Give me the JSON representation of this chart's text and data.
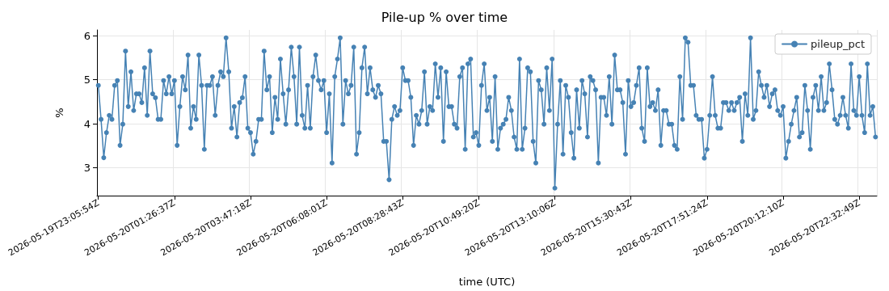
{
  "chart_data": {
    "type": "line",
    "title": "Pile-up % over time",
    "xlabel": "time (UTC)",
    "ylabel": "%",
    "categories": [
      "2026-05-19T23:05:54Z",
      null,
      null,
      null,
      null,
      null,
      null,
      null,
      null,
      null,
      null,
      null,
      null,
      null,
      null,
      null,
      null,
      null,
      null,
      null,
      null,
      null,
      null,
      null,
      null,
      null,
      null,
      null,
      "2026-05-20T01:26:37Z",
      null,
      null,
      null,
      null,
      null,
      null,
      null,
      null,
      null,
      null,
      null,
      null,
      null,
      null,
      null,
      null,
      null,
      null,
      null,
      null,
      null,
      null,
      null,
      null,
      null,
      null,
      null,
      "2026-05-20T03:47:18Z",
      null,
      null,
      null,
      null,
      null,
      null,
      null,
      null,
      null,
      null,
      null,
      null,
      null,
      null,
      null,
      null,
      null,
      null,
      null,
      null,
      null,
      null,
      null,
      null,
      null,
      null,
      null,
      "2026-05-20T06:08:01Z",
      null,
      null,
      null,
      null,
      null,
      null,
      null,
      null,
      null,
      null,
      null,
      null,
      null,
      null,
      null,
      null,
      null,
      null,
      null,
      null,
      null,
      null,
      null,
      null,
      null,
      null,
      null,
      "2026-05-20T08:28:43Z",
      null,
      null,
      null,
      null,
      null,
      null,
      null,
      null,
      null,
      null,
      null,
      null,
      null,
      null,
      null,
      null,
      null,
      null,
      null,
      null,
      null,
      null,
      null,
      null,
      null,
      null,
      null,
      "2026-05-20T10:49:20Z",
      null,
      null,
      null,
      null,
      null,
      null,
      null,
      null,
      null,
      null,
      null,
      null,
      null,
      null,
      null,
      null,
      null,
      null,
      null,
      null,
      null,
      null,
      null,
      null,
      null,
      null,
      null,
      "2026-05-20T13:10:06Z",
      null,
      null,
      null,
      null,
      null,
      null,
      null,
      null,
      null,
      null,
      null,
      null,
      null,
      null,
      null,
      null,
      null,
      null,
      null,
      null,
      null,
      null,
      null,
      null,
      null,
      null,
      null,
      "2026-05-20T15:30:43Z",
      null,
      null,
      null,
      null,
      null,
      null,
      null,
      null,
      null,
      null,
      null,
      null,
      null,
      null,
      null,
      null,
      null,
      null,
      null,
      null,
      null,
      null,
      null,
      null,
      null,
      null,
      null,
      "2026-05-20T17:51:24Z",
      null,
      null,
      null,
      null,
      null,
      null,
      null,
      null,
      null,
      null,
      null,
      null,
      null,
      null,
      null,
      null,
      null,
      null,
      null,
      null,
      null,
      null,
      null,
      null,
      null,
      null,
      null,
      "2026-05-20T20:12:10Z",
      null,
      null,
      null,
      null,
      null,
      null,
      null,
      null,
      null,
      null,
      null,
      null,
      null,
      null,
      null,
      null,
      null,
      null,
      null,
      null,
      null,
      null,
      null,
      null,
      null,
      null,
      null,
      "2026-05-20T22:32:49Z",
      null,
      null,
      null,
      null,
      null,
      null
    ],
    "series": [
      {
        "name": "pileup_pct",
        "color": "#4682b4",
        "values": [
          4.87,
          4.1,
          3.23,
          3.8,
          4.19,
          4.1,
          4.87,
          4.98,
          3.51,
          3.99,
          5.65,
          4.39,
          5.18,
          4.3,
          4.68,
          4.68,
          4.48,
          5.27,
          4.19,
          5.65,
          4.68,
          4.59,
          4.1,
          4.1,
          4.98,
          4.68,
          5.07,
          4.68,
          4.98,
          3.51,
          4.39,
          5.07,
          4.77,
          5.56,
          3.9,
          4.39,
          4.1,
          5.56,
          4.87,
          3.42,
          4.87,
          4.87,
          5.07,
          4.19,
          4.87,
          5.18,
          5.07,
          5.95,
          5.18,
          3.9,
          4.39,
          3.7,
          4.48,
          4.59,
          5.07,
          3.9,
          3.8,
          3.31,
          3.6,
          4.1,
          4.1,
          5.65,
          4.77,
          5.07,
          3.8,
          4.6,
          4.1,
          5.47,
          4.68,
          3.99,
          4.77,
          5.74,
          5.07,
          3.99,
          5.74,
          4.19,
          3.9,
          4.87,
          3.9,
          5.07,
          5.56,
          4.98,
          4.77,
          4.98,
          3.8,
          4.68,
          3.11,
          5.07,
          5.47,
          5.95,
          3.99,
          4.98,
          4.68,
          4.87,
          5.74,
          3.31,
          3.8,
          5.27,
          5.74,
          4.68,
          5.27,
          4.77,
          4.6,
          4.87,
          4.68,
          3.6,
          3.6,
          2.73,
          4.1,
          4.39,
          4.19,
          4.3,
          5.27,
          4.98,
          4.98,
          4.6,
          3.51,
          4.19,
          3.99,
          4.3,
          5.18,
          3.99,
          4.39,
          4.3,
          5.36,
          4.6,
          5.27,
          3.6,
          5.18,
          4.39,
          4.39,
          3.99,
          3.9,
          5.07,
          5.27,
          3.42,
          5.36,
          5.47,
          3.7,
          3.8,
          3.51,
          4.87,
          5.36,
          4.3,
          4.6,
          3.6,
          5.07,
          3.42,
          3.9,
          3.99,
          4.1,
          4.6,
          4.3,
          3.7,
          3.42,
          5.47,
          3.42,
          3.9,
          5.27,
          5.18,
          3.6,
          3.11,
          4.98,
          4.77,
          3.99,
          5.27,
          4.3,
          5.47,
          2.54,
          3.99,
          4.98,
          3.31,
          4.87,
          4.6,
          3.8,
          3.22,
          4.77,
          3.9,
          4.98,
          4.68,
          3.7,
          5.07,
          4.98,
          4.77,
          3.11,
          4.6,
          4.6,
          4.19,
          5.07,
          3.99,
          5.56,
          4.77,
          4.77,
          4.48,
          3.31,
          4.98,
          4.39,
          4.48,
          4.87,
          5.27,
          3.9,
          3.6,
          5.27,
          4.39,
          4.48,
          4.3,
          4.77,
          3.51,
          4.3,
          4.3,
          3.99,
          3.99,
          3.51,
          3.42,
          5.07,
          4.1,
          5.95,
          5.85,
          4.87,
          4.87,
          4.19,
          4.1,
          4.1,
          3.22,
          3.42,
          4.19,
          5.07,
          4.19,
          3.9,
          3.9,
          4.48,
          4.48,
          4.3,
          4.48,
          4.3,
          4.48,
          4.6,
          3.6,
          4.68,
          4.19,
          5.95,
          4.1,
          4.3,
          5.18,
          4.87,
          4.6,
          4.87,
          4.39,
          4.68,
          4.77,
          4.3,
          4.19,
          4.39,
          3.22,
          3.6,
          3.99,
          4.3,
          4.6,
          3.7,
          3.8,
          4.87,
          4.3,
          3.42,
          4.6,
          4.87,
          4.3,
          5.07,
          4.3,
          4.48,
          5.36,
          4.77,
          4.1,
          3.99,
          4.19,
          4.6,
          4.19,
          3.9,
          5.36,
          4.3,
          4.19,
          5.07,
          4.19,
          3.8,
          5.36,
          4.19,
          4.39,
          3.7
        ]
      }
    ],
    "ylim": [
      2.37,
      6.13
    ],
    "yticks": [
      3,
      4,
      5,
      6
    ],
    "grid": true,
    "legend": "top right",
    "marker": "circle",
    "line_style": "solid"
  }
}
